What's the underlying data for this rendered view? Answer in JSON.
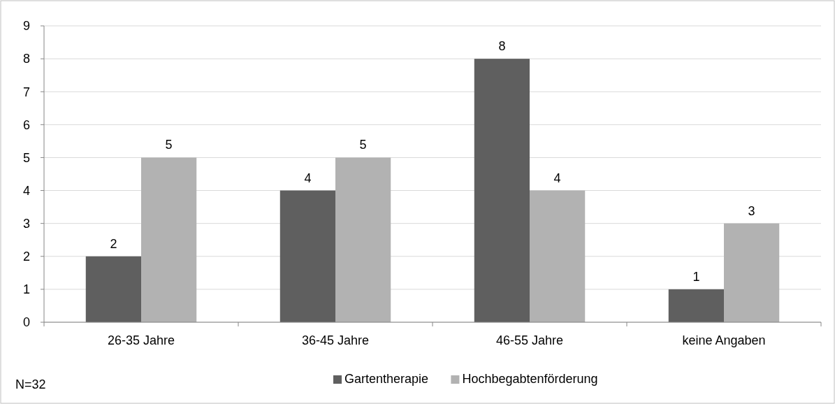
{
  "chart_data": {
    "type": "bar",
    "categories": [
      "26-35 Jahre",
      "36-45 Jahre",
      "46-55 Jahre",
      "keine Angaben"
    ],
    "series": [
      {
        "name": "Gartentherapie",
        "color": "#5f5f5f",
        "values": [
          2,
          4,
          8,
          1
        ]
      },
      {
        "name": "Hochbegabtenförderung",
        "color": "#b2b2b2",
        "values": [
          5,
          5,
          4,
          3
        ]
      }
    ],
    "ylim": [
      0,
      9
    ],
    "yticks": [
      0,
      1,
      2,
      3,
      4,
      5,
      6,
      7,
      8,
      9
    ],
    "grid": "y",
    "legend": "bottom",
    "data_labels": true,
    "annotations": [
      "N=32"
    ]
  }
}
